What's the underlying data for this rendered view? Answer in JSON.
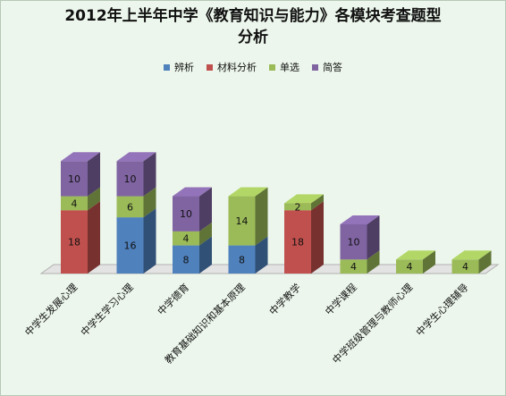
{
  "chart_data": {
    "type": "bar",
    "stacked": true,
    "three_d": true,
    "title_line1": "2012年上半年中学《教育知识与能力》各模块考查题型",
    "title_line2": "分析",
    "xlabel": "",
    "ylabel": "",
    "grid": false,
    "legend_position": "top",
    "categories": [
      "中学生发展心理",
      "中学生学习心理",
      "中学德育",
      "教育基础知识和基本原理",
      "中学教学",
      "中学课程",
      "中学班级管理与教师心理",
      "中学生心理辅导"
    ],
    "series": [
      {
        "name": "辨析",
        "color": "#4f81bd",
        "values": [
          0,
          16,
          8,
          8,
          0,
          0,
          0,
          0
        ]
      },
      {
        "name": "材料分析",
        "color": "#c0504d",
        "values": [
          18,
          0,
          0,
          0,
          18,
          0,
          0,
          0
        ]
      },
      {
        "name": "单选",
        "color": "#9bbb59",
        "values": [
          4,
          6,
          4,
          14,
          2,
          4,
          4,
          4
        ]
      },
      {
        "name": "简答",
        "color": "#8064a2",
        "values": [
          10,
          10,
          10,
          0,
          0,
          10,
          0,
          0
        ]
      }
    ]
  }
}
